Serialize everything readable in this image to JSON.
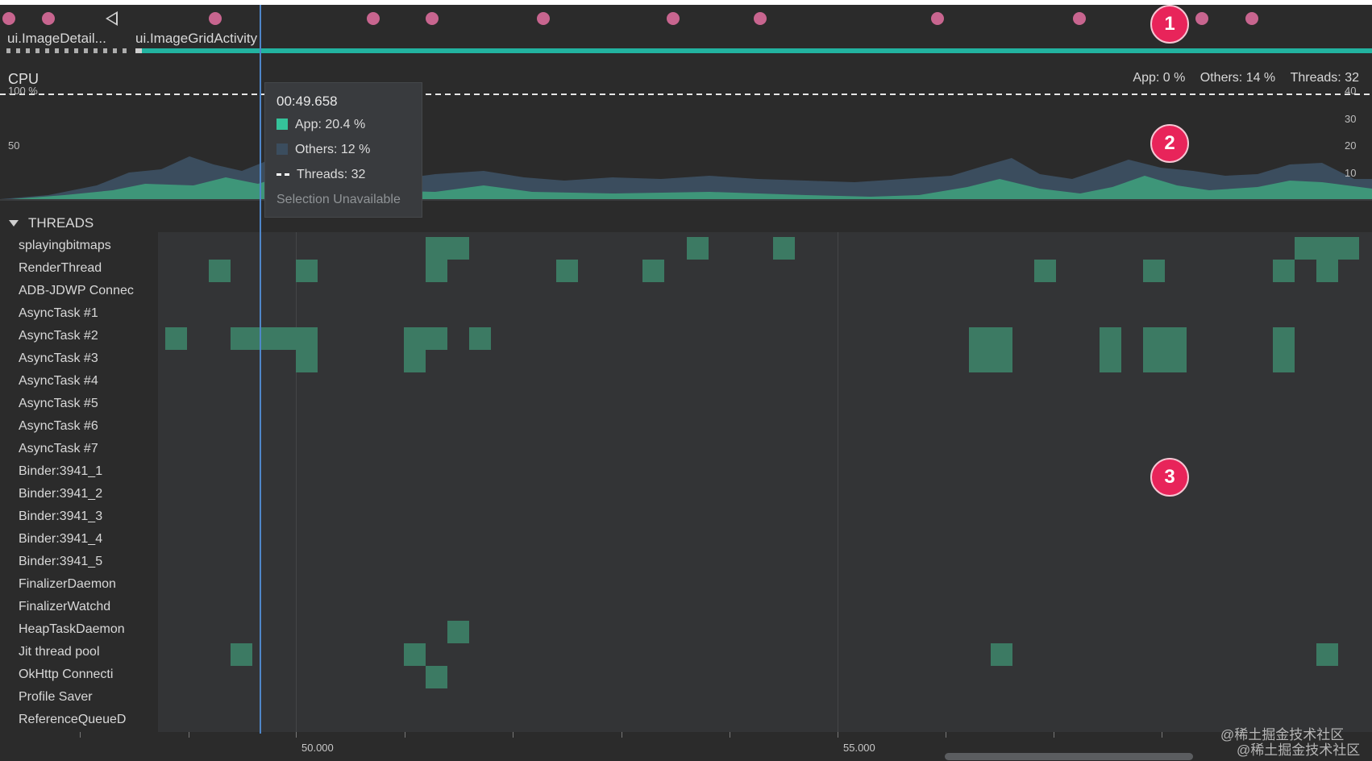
{
  "events": {
    "activities": [
      {
        "label": "ui.ImageDetail..."
      },
      {
        "label": "ui.ImageGridActivity"
      }
    ]
  },
  "cpu": {
    "label": "CPU",
    "summary": {
      "app": "App: 0 %",
      "others": "Others: 14 %",
      "threads": "Threads: 32"
    },
    "left_axis": [
      "100 %",
      "50"
    ],
    "right_axis": [
      "40",
      "30",
      "20",
      "10"
    ],
    "colors": {
      "app": "#3f9c7c",
      "others": "#3b4d5e",
      "threads_line": "#ffffff"
    }
  },
  "tooltip": {
    "time": "00:49.658",
    "app": "App: 20.4 %",
    "others": "Others: 12 %",
    "threads": "Threads: 32",
    "note": "Selection Unavailable"
  },
  "threads": {
    "title": "THREADS",
    "names": [
      "splayingbitmaps",
      "RenderThread",
      "ADB-JDWP Connec",
      "AsyncTask #1",
      "AsyncTask #2",
      "AsyncTask #3",
      "AsyncTask #4",
      "AsyncTask #5",
      "AsyncTask #6",
      "AsyncTask #7",
      "Binder:3941_1",
      "Binder:3941_2",
      "Binder:3941_3",
      "Binder:3941_4",
      "Binder:3941_5",
      "FinalizerDaemon",
      "FinalizerWatchd",
      "HeapTaskDaemon",
      "Jit thread pool",
      "OkHttp Connecti",
      "Profile Saver",
      "ReferenceQueueD"
    ],
    "activity_color": "#3c7a63"
  },
  "time_axis": {
    "labels": [
      "50.000",
      "55.000"
    ]
  },
  "badges": [
    "1",
    "2",
    "3"
  ],
  "watermark": [
    "@稀土掘金技术社区",
    "@稀土掘金技术社区"
  ]
}
